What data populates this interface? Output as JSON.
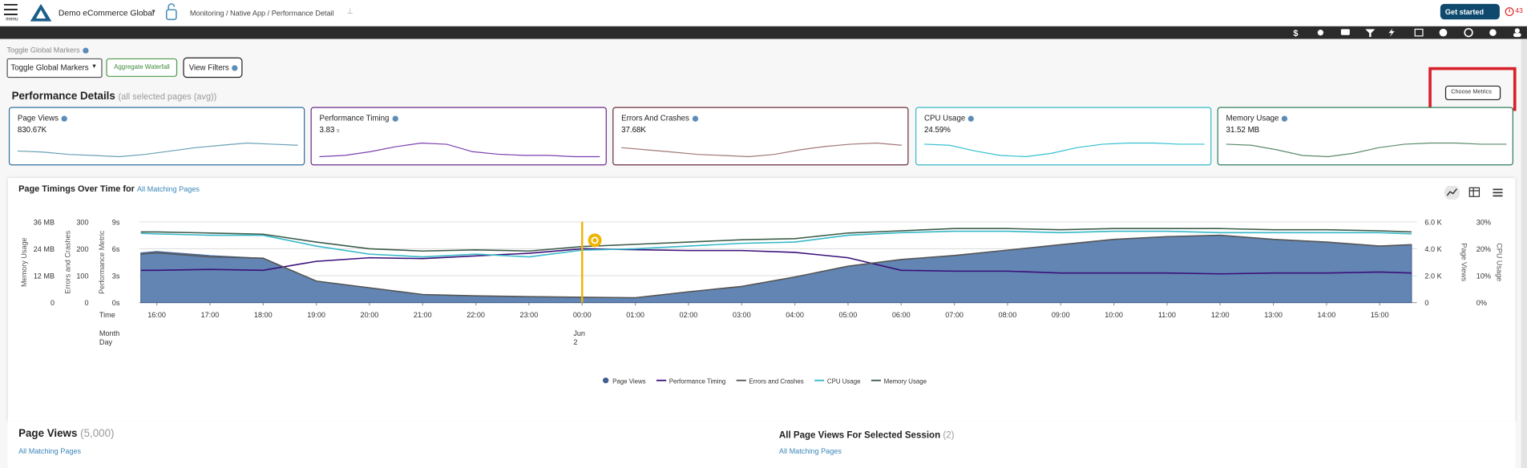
{
  "header": {
    "menu_label": "menu",
    "org": "Demo eCommerce Global",
    "breadcrumb": "Monitoring / Native App / Performance Detail",
    "cta": "Get started",
    "alert_count": "43"
  },
  "controls": {
    "label": "Toggle Global Markers",
    "select": "Toggle Global Markers",
    "aggregate": "Aggregate Waterfall",
    "filters": "View Filters"
  },
  "section": {
    "title": "Performance Details",
    "subtitle": "(all selected pages (avg))",
    "choose": "Choose Metrics"
  },
  "cards": [
    {
      "title": "Page Views",
      "value": "830.67K",
      "color": "#2e6f9e",
      "line": "#6aa0b5",
      "trend": [
        50,
        49,
        47,
        46,
        45,
        47,
        50,
        53,
        55,
        57,
        56,
        55
      ]
    },
    {
      "title": "Performance Timing",
      "value": "3.83",
      "unit": "s",
      "color": "#6a2a8a",
      "line": "#7b3fae",
      "trend": [
        44,
        45,
        48,
        52,
        55,
        54,
        48,
        46,
        45,
        45,
        44,
        44
      ]
    },
    {
      "title": "Errors And Crashes",
      "value": "37.68K",
      "color": "#6b2b3a",
      "line": "#a07878",
      "trend": [
        52,
        50,
        48,
        46,
        45,
        44,
        46,
        50,
        53,
        55,
        56,
        54
      ]
    },
    {
      "title": "CPU Usage",
      "value": "24.59%",
      "color": "#35b8c8",
      "line": "#35c0d0",
      "trend": [
        56,
        55,
        50,
        46,
        45,
        48,
        53,
        56,
        57,
        57,
        56,
        56
      ]
    },
    {
      "title": "Memory Usage",
      "value": "31.52 MB",
      "color": "#2e7d5b",
      "line": "#5a8a6a",
      "trend": [
        55,
        54,
        50,
        45,
        44,
        47,
        52,
        55,
        56,
        56,
        55,
        55
      ]
    }
  ],
  "chart": {
    "title": "Page Timings Over Time for",
    "link": "All Matching Pages",
    "x_axis_label": "Time",
    "month_label": "Month",
    "day_label": "Day",
    "month": "Jun",
    "day": "2",
    "xlim": [
      -0.33,
      23.7
    ],
    "xticks": [
      {
        "value": 0,
        "label": "16:00"
      },
      {
        "value": 1,
        "label": "17:00"
      },
      {
        "value": 2,
        "label": "18:00"
      },
      {
        "value": 3,
        "label": "19:00"
      },
      {
        "value": 4,
        "label": "20:00"
      },
      {
        "value": 5,
        "label": "21:00"
      },
      {
        "value": 6,
        "label": "22:00"
      },
      {
        "value": 7,
        "label": "23:00"
      },
      {
        "value": 8,
        "label": "00:00"
      },
      {
        "value": 9,
        "label": "01:00"
      },
      {
        "value": 10,
        "label": "02:00"
      },
      {
        "value": 11,
        "label": "03:00"
      },
      {
        "value": 12,
        "label": "04:00"
      },
      {
        "value": 13,
        "label": "05:00"
      },
      {
        "value": 14,
        "label": "06:00"
      },
      {
        "value": 15,
        "label": "07:00"
      },
      {
        "value": 16,
        "label": "08:00"
      },
      {
        "value": 17,
        "label": "09:00"
      },
      {
        "value": 18,
        "label": "10:00"
      },
      {
        "value": 19,
        "label": "11:00"
      },
      {
        "value": 20,
        "label": "12:00"
      },
      {
        "value": 21,
        "label": "13:00"
      },
      {
        "value": 22,
        "label": "14:00"
      },
      {
        "value": 23,
        "label": "15:00"
      }
    ],
    "marker_x": 8,
    "axes": [
      {
        "title": "Memory Usage",
        "ylim": [
          0,
          36
        ],
        "yticks": [
          0,
          {
            "value": 12,
            "label": "12 MB"
          },
          {
            "value": 24,
            "label": "24 MB"
          },
          {
            "value": 36,
            "label": "36 MB"
          }
        ]
      },
      {
        "title": "Errors and Crashes",
        "ylim": [
          0,
          300
        ],
        "yticks": [
          0,
          100,
          200,
          300
        ]
      },
      {
        "title": "Performance Metric",
        "ylim": [
          0,
          9
        ],
        "yticks": [
          {
            "value": 0,
            "label": "0s"
          },
          {
            "value": 3,
            "label": "3s"
          },
          {
            "value": 6,
            "label": "6s"
          },
          {
            "value": 9,
            "label": "9s"
          }
        ],
        "grid": true
      },
      {
        "title": "Page Views",
        "ylim": [
          0,
          6000
        ],
        "yticks": [
          0,
          {
            "value": 2000,
            "label": "2.0 K"
          },
          {
            "value": 4000,
            "label": "4.0 K"
          },
          {
            "value": 6000,
            "label": "6.0 K"
          }
        ]
      },
      {
        "title": "CPU Usage",
        "ylim": [
          0,
          30
        ],
        "yticks": [
          {
            "value": 0,
            "label": "0%"
          },
          {
            "value": 10,
            "label": "10%"
          },
          {
            "value": 20,
            "label": "20%"
          },
          {
            "value": 30,
            "label": "30%"
          }
        ]
      }
    ],
    "x": [
      -0.3,
      0,
      1,
      2,
      3,
      4,
      5,
      6,
      7,
      8,
      9,
      10,
      11,
      12,
      13,
      14,
      15,
      16,
      17,
      18,
      19,
      20,
      21,
      22,
      23,
      23.6
    ],
    "series": [
      {
        "name": "Page Views",
        "color": "#3f5f8f",
        "fill": "#6285b3",
        "axis": 3,
        "values": [
          3700,
          3800,
          3500,
          3300,
          1600,
          1100,
          600,
          500,
          450,
          400,
          350,
          800,
          1200,
          1900,
          2700,
          3200,
          3500,
          3900,
          4300,
          4700,
          4900,
          5000,
          4700,
          4500,
          4200,
          4300
        ]
      },
      {
        "name": "Performance Timing",
        "color": "#3b0f7a",
        "axis": 2,
        "values": [
          3.6,
          3.6,
          3.7,
          3.6,
          4.6,
          5.0,
          4.9,
          5.2,
          5.5,
          6.0,
          5.9,
          5.8,
          5.8,
          5.6,
          5.0,
          3.6,
          3.5,
          3.5,
          3.3,
          3.3,
          3.3,
          3.2,
          3.3,
          3.3,
          3.4,
          3.3
        ]
      },
      {
        "name": "Errors and Crashes",
        "color": "#555555",
        "axis": 1,
        "values": [
          180,
          185,
          170,
          165,
          80,
          55,
          30,
          25,
          22,
          20,
          18,
          40,
          60,
          95,
          135,
          160,
          175,
          195,
          215,
          235,
          245,
          250,
          235,
          225,
          210,
          215
        ]
      },
      {
        "name": "CPU Usage",
        "color": "#35b8c8",
        "axis": 4,
        "values": [
          25.7,
          25.5,
          25,
          25,
          21,
          18,
          17,
          18,
          17,
          19.5,
          20,
          21,
          22,
          22.5,
          25,
          26,
          26.5,
          26.5,
          26,
          26.5,
          26.5,
          26,
          26,
          26,
          26,
          25.5
        ]
      },
      {
        "name": "Memory Usage",
        "color": "#3d5c4a",
        "axis": 0,
        "values": [
          31.5,
          31.5,
          31,
          30.5,
          27,
          24,
          23,
          23.5,
          23,
          25,
          26,
          27,
          28,
          28.5,
          31,
          32,
          33,
          33,
          32.5,
          33,
          33,
          33,
          32.5,
          32.5,
          32,
          31.5
        ]
      }
    ]
  },
  "lists": [
    {
      "title": "Page Views",
      "count": "(5,000)",
      "link": "All Matching Pages"
    },
    {
      "title": "All Page Views For Selected Session",
      "count": "(2)",
      "link": "All Matching Pages"
    }
  ]
}
